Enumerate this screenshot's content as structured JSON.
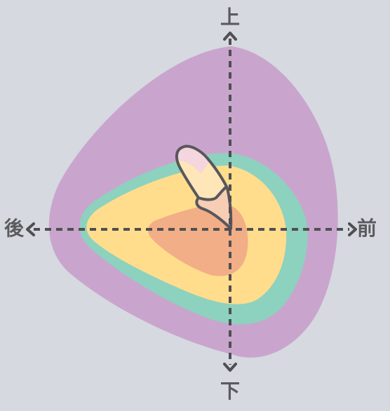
{
  "directions": {
    "up": "上",
    "down": "下",
    "back": "後",
    "front": "前"
  },
  "regions": [
    {
      "name": "outer-zone",
      "color": "#c9a5cd"
    },
    {
      "name": "middle-zone",
      "color": "#8dd1bf"
    },
    {
      "name": "inner-zone",
      "color": "#ffdd8c"
    },
    {
      "name": "core-zone",
      "color": "#f2ae86"
    }
  ],
  "tooth": {
    "stroke": "#58575c",
    "crown_color": "#f5d5de",
    "root_color": "#ffe6b8",
    "neck_color": "#f7cdb4"
  },
  "axes": {
    "color": "#4f4f53",
    "style": "dashed"
  }
}
